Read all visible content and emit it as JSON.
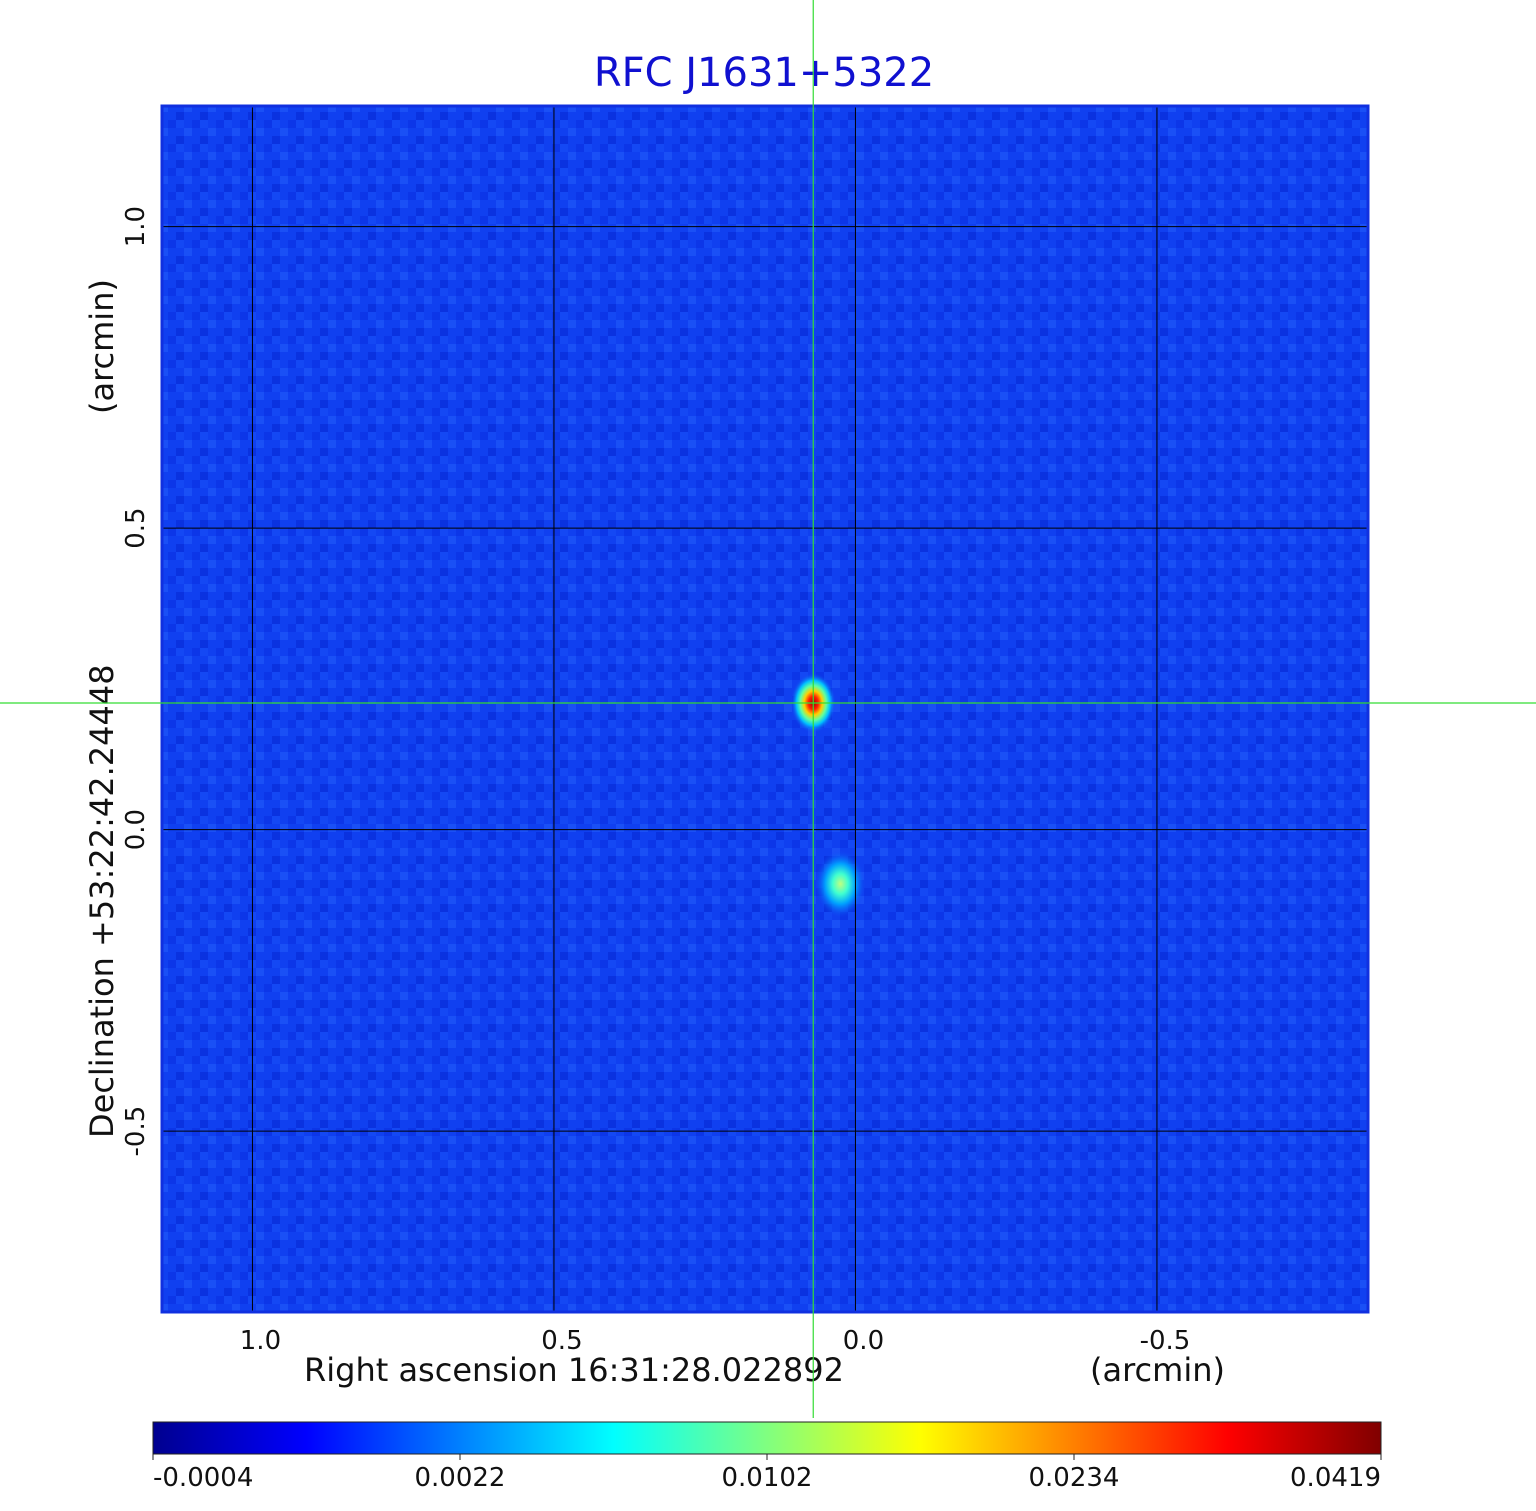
{
  "chart_data": {
    "type": "heatmap",
    "title": "RFC J1631+5322",
    "xlabel": "Right ascension  16:31:28.022892",
    "xlabel_unit": "(arcmin)",
    "ylabel": "Declination  +53:22:42.24448",
    "ylabel_unit": "(arcmin)",
    "xlim": [
      1.15,
      -0.85
    ],
    "ylim": [
      -0.8,
      1.2
    ],
    "x_ticks": [
      {
        "value": 1.0,
        "label": "1.0"
      },
      {
        "value": 0.5,
        "label": "0.5"
      },
      {
        "value": 0.0,
        "label": "0.0"
      },
      {
        "value": -0.5,
        "label": "-0.5"
      }
    ],
    "y_ticks": [
      {
        "value": 1.0,
        "label": "1.0"
      },
      {
        "value": 0.5,
        "label": "0.5"
      },
      {
        "value": 0.0,
        "label": "0.0"
      },
      {
        "value": -0.5,
        "label": "-0.5"
      }
    ],
    "grid": true,
    "crosshair": {
      "x": 0.07,
      "y": 0.21,
      "color": "#33dd33"
    },
    "sources": [
      {
        "x": 0.07,
        "y": 0.21,
        "peak": 0.0419
      },
      {
        "x": 0.025,
        "y": -0.09,
        "peak": 0.0102
      }
    ],
    "colorbar": {
      "ticks": [
        "-0.0004",
        "0.0022",
        "0.0102",
        "0.0234",
        "0.0419"
      ],
      "colormap": "jet",
      "colors": [
        "#00008f",
        "#0000ff",
        "#0080ff",
        "#00ffff",
        "#80ff80",
        "#ffff00",
        "#ff8000",
        "#ff0000",
        "#800000"
      ]
    },
    "background_color": "#1040f0",
    "frame_color": "#1030e0"
  }
}
